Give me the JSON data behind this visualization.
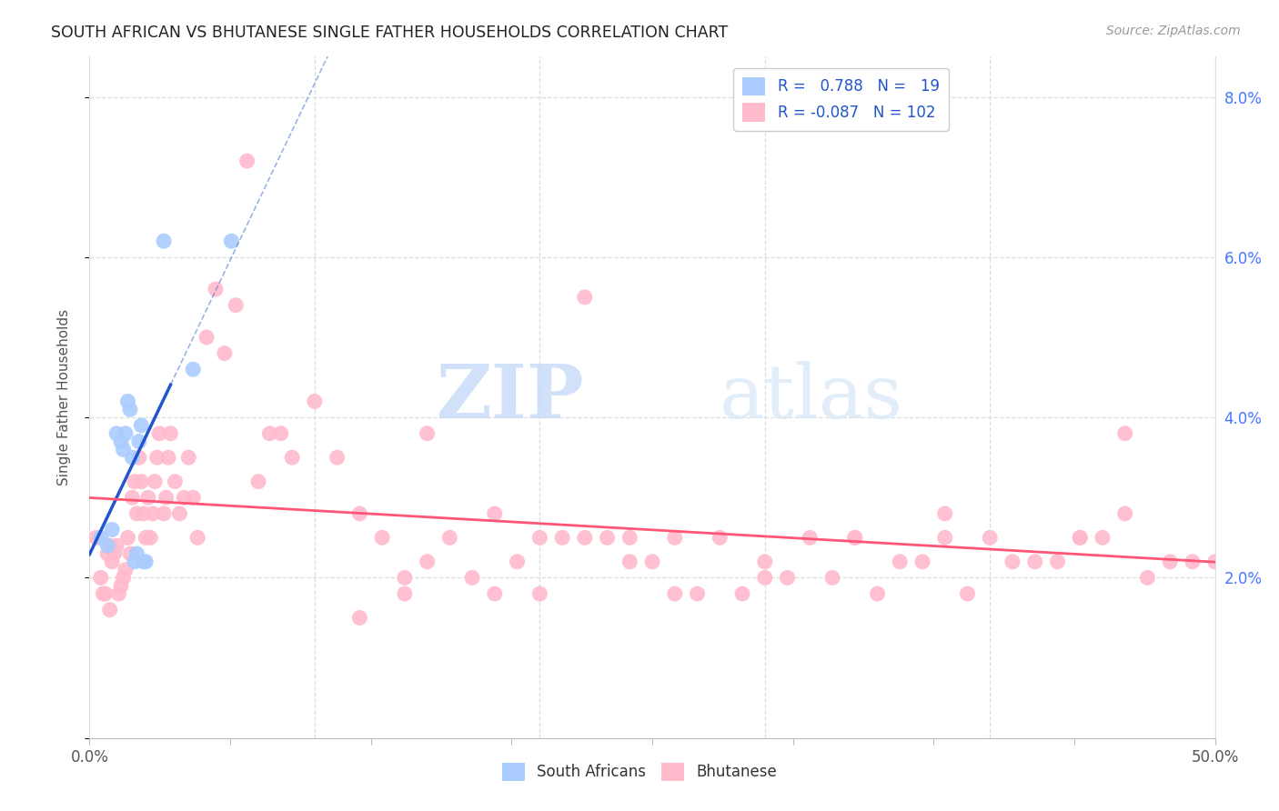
{
  "title": "SOUTH AFRICAN VS BHUTANESE SINGLE FATHER HOUSEHOLDS CORRELATION CHART",
  "source": "Source: ZipAtlas.com",
  "ylabel": "Single Father Households",
  "xlim": [
    0,
    0.5
  ],
  "ylim": [
    0,
    0.085
  ],
  "legend_r_blue": "0.788",
  "legend_n_blue": "19",
  "legend_r_pink": "-0.087",
  "legend_n_pink": "102",
  "blue_color": "#aaccff",
  "pink_color": "#ffbbcc",
  "blue_line_color": "#2255cc",
  "pink_line_color": "#ff5577",
  "watermark_zip": "ZIP",
  "watermark_atlas": "atlas",
  "grid_color": "#dddddd",
  "right_tick_color": "#4477ff",
  "sa_x": [
    0.005,
    0.008,
    0.01,
    0.012,
    0.014,
    0.015,
    0.016,
    0.017,
    0.018,
    0.019,
    0.02,
    0.021,
    0.022,
    0.023,
    0.024,
    0.025,
    0.033,
    0.046,
    0.063
  ],
  "sa_y": [
    0.025,
    0.024,
    0.026,
    0.038,
    0.037,
    0.036,
    0.038,
    0.042,
    0.041,
    0.035,
    0.022,
    0.023,
    0.037,
    0.039,
    0.022,
    0.022,
    0.062,
    0.046,
    0.062
  ],
  "bhu_x": [
    0.003,
    0.005,
    0.006,
    0.007,
    0.008,
    0.009,
    0.009,
    0.01,
    0.011,
    0.012,
    0.013,
    0.014,
    0.015,
    0.016,
    0.017,
    0.018,
    0.019,
    0.02,
    0.021,
    0.022,
    0.023,
    0.024,
    0.025,
    0.026,
    0.027,
    0.028,
    0.029,
    0.03,
    0.031,
    0.033,
    0.034,
    0.035,
    0.036,
    0.038,
    0.04,
    0.042,
    0.044,
    0.046,
    0.048,
    0.052,
    0.056,
    0.06,
    0.065,
    0.07,
    0.075,
    0.08,
    0.09,
    0.1,
    0.11,
    0.12,
    0.13,
    0.14,
    0.15,
    0.16,
    0.18,
    0.2,
    0.22,
    0.24,
    0.26,
    0.28,
    0.3,
    0.32,
    0.34,
    0.36,
    0.38,
    0.4,
    0.42,
    0.44,
    0.46,
    0.48,
    0.5,
    0.27,
    0.29,
    0.31,
    0.33,
    0.35,
    0.37,
    0.39,
    0.41,
    0.43,
    0.45,
    0.47,
    0.49,
    0.085,
    0.22,
    0.24,
    0.3,
    0.34,
    0.38,
    0.44,
    0.46,
    0.15,
    0.17,
    0.19,
    0.21,
    0.23,
    0.25,
    0.26,
    0.18,
    0.2,
    0.12,
    0.14
  ],
  "bhu_y": [
    0.025,
    0.02,
    0.018,
    0.018,
    0.023,
    0.024,
    0.016,
    0.022,
    0.023,
    0.024,
    0.018,
    0.019,
    0.02,
    0.021,
    0.025,
    0.023,
    0.03,
    0.032,
    0.028,
    0.035,
    0.032,
    0.028,
    0.025,
    0.03,
    0.025,
    0.028,
    0.032,
    0.035,
    0.038,
    0.028,
    0.03,
    0.035,
    0.038,
    0.032,
    0.028,
    0.03,
    0.035,
    0.03,
    0.025,
    0.05,
    0.056,
    0.048,
    0.054,
    0.072,
    0.032,
    0.038,
    0.035,
    0.042,
    0.035,
    0.028,
    0.025,
    0.02,
    0.022,
    0.025,
    0.028,
    0.025,
    0.025,
    0.022,
    0.025,
    0.025,
    0.022,
    0.025,
    0.025,
    0.022,
    0.028,
    0.025,
    0.022,
    0.025,
    0.028,
    0.022,
    0.022,
    0.018,
    0.018,
    0.02,
    0.02,
    0.018,
    0.022,
    0.018,
    0.022,
    0.022,
    0.025,
    0.02,
    0.022,
    0.038,
    0.055,
    0.025,
    0.02,
    0.025,
    0.025,
    0.025,
    0.038,
    0.038,
    0.02,
    0.022,
    0.025,
    0.025,
    0.022,
    0.018,
    0.018,
    0.018,
    0.015,
    0.018
  ]
}
